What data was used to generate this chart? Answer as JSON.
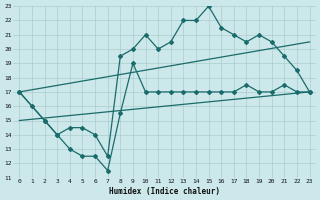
{
  "xlabel": "Humidex (Indice chaleur)",
  "bg_color": "#cce8ea",
  "grid_color": "#aacccc",
  "line_color": "#1a6b6b",
  "xlim": [
    -0.5,
    23.5
  ],
  "ylim": [
    11,
    23
  ],
  "xticks": [
    0,
    1,
    2,
    3,
    4,
    5,
    6,
    7,
    8,
    9,
    10,
    11,
    12,
    13,
    14,
    15,
    16,
    17,
    18,
    19,
    20,
    21,
    22,
    23
  ],
  "yticks": [
    11,
    12,
    13,
    14,
    15,
    16,
    17,
    18,
    19,
    20,
    21,
    22,
    23
  ],
  "line1_x": [
    0,
    1,
    2,
    3,
    4,
    5,
    6,
    7,
    8,
    9,
    10,
    11,
    12,
    13,
    14,
    15,
    16,
    17,
    18,
    19,
    20,
    21,
    22,
    23
  ],
  "line1_y": [
    17,
    16,
    15,
    14,
    14.5,
    14.5,
    14,
    12.5,
    19.5,
    20,
    21,
    20,
    20.5,
    22,
    22,
    23,
    21.5,
    21,
    20.5,
    21,
    20.5,
    19.5,
    18.5,
    17
  ],
  "line2_x": [
    0,
    2,
    3,
    4,
    5,
    6,
    7,
    8,
    9,
    10,
    11,
    12,
    13,
    14,
    15,
    16,
    17,
    18,
    19,
    20,
    21,
    22,
    23
  ],
  "line2_y": [
    17,
    15,
    14,
    13,
    12.5,
    12.5,
    11.5,
    15.5,
    19,
    17,
    17,
    17,
    17,
    17,
    17,
    17,
    17,
    17.5,
    17,
    17,
    17.5,
    17,
    17
  ],
  "line3_x": [
    0,
    23
  ],
  "line3_y": [
    17,
    20.5
  ],
  "line4_x": [
    0,
    23
  ],
  "line4_y": [
    15,
    17
  ]
}
